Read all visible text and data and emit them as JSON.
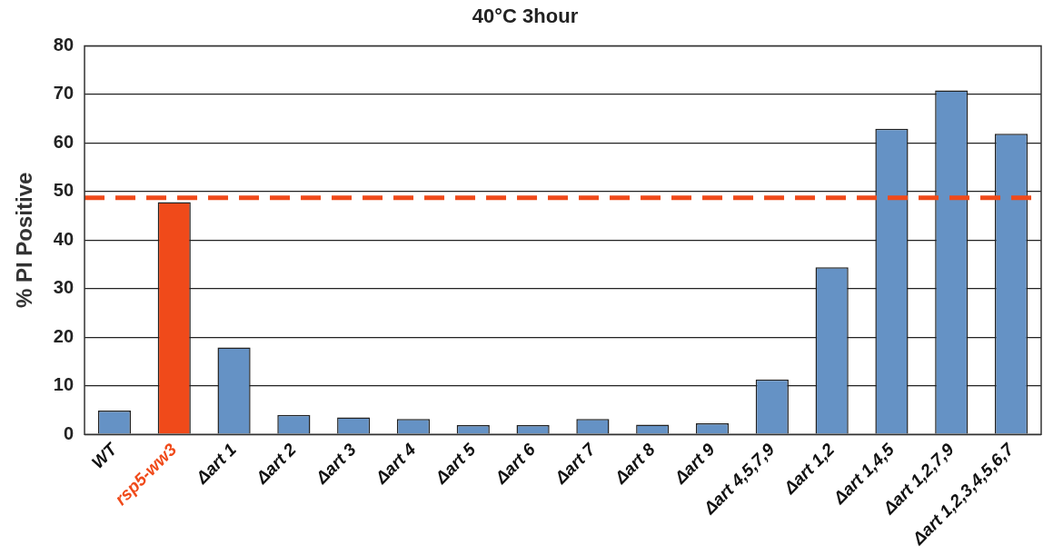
{
  "chart_data": {
    "type": "bar",
    "title": "40°C 3hour",
    "ylabel": "% PI Positive",
    "categories": [
      "WT",
      "rsp5-ww3",
      "Δart 1",
      "Δart 2",
      "Δart 3",
      "Δart 4",
      "Δart 5",
      "Δart 6",
      "Δart 7",
      "Δart 8",
      "Δart 9",
      "Δart 4,5,7,9",
      "Δart 1,2",
      "Δart 1,4,5",
      "Δart 1,2,7,9",
      "Δart 1,2,3,4,5,6,7"
    ],
    "values": [
      4.9,
      47.8,
      17.9,
      4.0,
      3.5,
      3.2,
      1.9,
      1.9,
      3.2,
      2.0,
      2.3,
      11.3,
      34.4,
      62.9,
      70.8,
      61.9
    ],
    "colors": [
      "#6592c5",
      "#f04a1a",
      "#6592c5",
      "#6592c5",
      "#6592c5",
      "#6592c5",
      "#6592c5",
      "#6592c5",
      "#6592c5",
      "#6592c5",
      "#6592c5",
      "#6592c5",
      "#6592c5",
      "#6592c5",
      "#6592c5",
      "#6592c5"
    ],
    "ylim": [
      0,
      80
    ],
    "yticks": [
      0,
      10,
      20,
      30,
      40,
      50,
      60,
      70,
      80
    ],
    "grid": "y",
    "legend": false,
    "ref_lines": [
      {
        "axis": "y",
        "value": 48.7,
        "color": "#f04a1a",
        "line_style": "dashed"
      }
    ]
  }
}
